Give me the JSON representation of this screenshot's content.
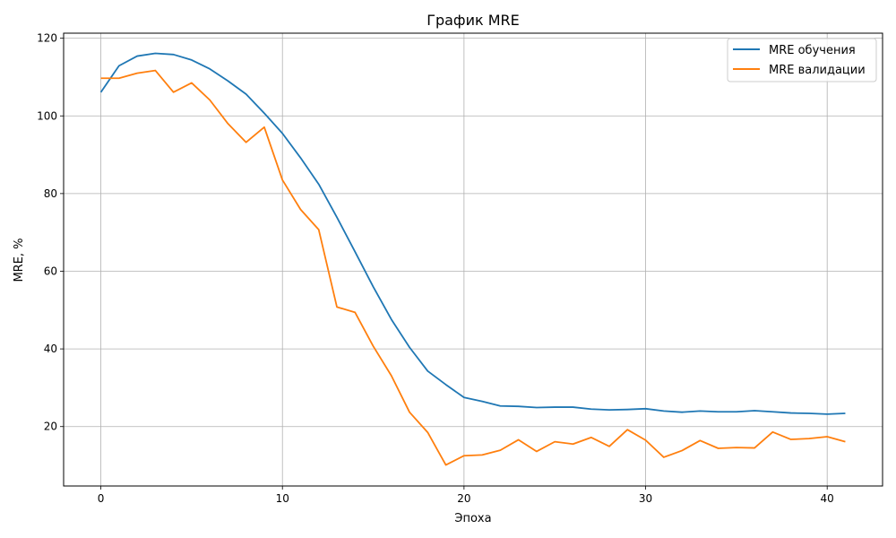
{
  "chart_data": {
    "type": "line",
    "title": "График MRE",
    "xlabel": "Эпоха",
    "ylabel": "MRE, %",
    "xlim": [
      -2.05,
      43.05
    ],
    "ylim": [
      4.7,
      121.3
    ],
    "xticks": [
      0,
      10,
      20,
      30,
      40
    ],
    "yticks": [
      20,
      40,
      60,
      80,
      100,
      120
    ],
    "grid": true,
    "legend_position": "top-right",
    "x": [
      0,
      1,
      2,
      3,
      4,
      5,
      6,
      7,
      8,
      9,
      10,
      11,
      12,
      13,
      14,
      15,
      16,
      17,
      18,
      19,
      20,
      21,
      22,
      23,
      24,
      25,
      26,
      27,
      28,
      29,
      30,
      31,
      32,
      33,
      34,
      35,
      36,
      37,
      38,
      39,
      40,
      41
    ],
    "series": [
      {
        "name": "MRE обучения",
        "color": "#1f77b4",
        "values": [
          106.1,
          112.9,
          115.4,
          116.1,
          115.8,
          114.4,
          112.1,
          109.0,
          105.6,
          100.7,
          95.5,
          89.2,
          82.4,
          73.9,
          65.0,
          56.0,
          47.6,
          40.4,
          34.3,
          30.8,
          27.5,
          26.5,
          25.3,
          25.2,
          24.9,
          25.0,
          25.0,
          24.5,
          24.3,
          24.4,
          24.6,
          24.0,
          23.7,
          24.0,
          23.8,
          23.8,
          24.1,
          23.8,
          23.5,
          23.4,
          23.2,
          23.4
        ]
      },
      {
        "name": "MRE валидации",
        "color": "#ff7f0e",
        "values": [
          109.7,
          109.7,
          111.0,
          111.7,
          106.1,
          108.5,
          104.1,
          98.0,
          93.2,
          97.1,
          83.5,
          75.9,
          70.7,
          50.8,
          49.4,
          40.7,
          33.1,
          23.7,
          18.5,
          10.1,
          12.5,
          12.7,
          13.9,
          16.6,
          13.6,
          16.1,
          15.5,
          17.2,
          14.9,
          19.2,
          16.5,
          12.1,
          13.8,
          16.4,
          14.4,
          14.6,
          14.5,
          18.6,
          16.7,
          16.9,
          17.4,
          16.1
        ]
      }
    ]
  }
}
